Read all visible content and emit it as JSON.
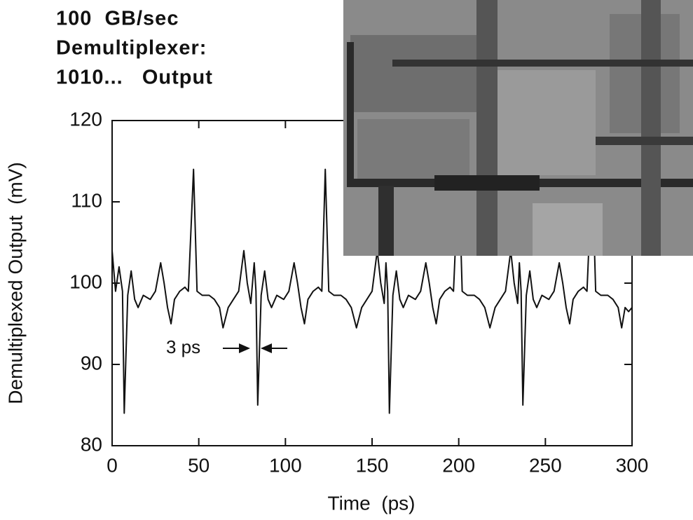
{
  "chart_data": {
    "type": "line",
    "title": [
      "100  GB/sec",
      "Demultiplexer:",
      "1010...   Output"
    ],
    "xlabel": "Time  (ps)",
    "ylabel": "Demultiplexed Output  (mV)",
    "annotation": "3 ps",
    "xlim": [
      0,
      300
    ],
    "xticks": [
      0,
      50,
      100,
      150,
      200,
      250,
      300
    ],
    "ylim": [
      80,
      120
    ],
    "yticks": [
      80,
      90,
      100,
      110,
      120
    ],
    "series": [
      {
        "color": "#111111",
        "x": [
          0,
          2,
          4,
          6,
          7,
          9,
          11,
          13,
          15,
          18,
          22,
          25,
          28,
          30,
          32,
          34,
          36,
          39,
          42,
          44,
          47,
          49,
          52,
          56,
          59,
          62,
          64,
          67,
          70,
          73,
          76,
          78,
          80,
          82,
          83,
          84,
          86,
          88,
          90,
          92,
          95,
          99,
          102,
          105,
          107,
          109,
          111,
          113,
          116,
          119,
          121,
          123,
          125,
          128,
          132,
          135,
          138,
          141,
          144,
          147,
          150,
          153,
          155,
          157,
          158,
          159,
          160,
          162,
          164,
          166,
          168,
          171,
          175,
          178,
          181,
          183,
          185,
          187,
          189,
          192,
          195,
          197,
          200,
          202,
          205,
          209,
          212,
          215,
          218,
          221,
          224,
          227,
          230,
          232,
          234,
          235,
          236,
          237,
          239,
          241,
          243,
          245,
          248,
          252,
          255,
          258,
          260,
          262,
          264,
          266,
          269,
          272,
          274,
          277,
          279,
          282,
          286,
          289,
          292,
          294,
          296,
          298,
          300
        ],
        "values": [
          104,
          99,
          102,
          99,
          84,
          98.5,
          101.5,
          98,
          97,
          98.5,
          98,
          99,
          102.5,
          100,
          97,
          95,
          98,
          99,
          99.5,
          99,
          114,
          99,
          98.5,
          98.5,
          98,
          97,
          94.5,
          97,
          98,
          99,
          104,
          100,
          97.5,
          102.5,
          99,
          85,
          98.5,
          101.5,
          98,
          97,
          98.5,
          98,
          99,
          102.5,
          100,
          97,
          95,
          98,
          99,
          99.5,
          99,
          114,
          99,
          98.5,
          98.5,
          98,
          97,
          94.5,
          97,
          98,
          99,
          104,
          100,
          97.5,
          102.5,
          99,
          84,
          98.5,
          101.5,
          98,
          97,
          98.5,
          98,
          99,
          102.5,
          100,
          97,
          95,
          98,
          99,
          99.5,
          99,
          114,
          99,
          98.5,
          98.5,
          98,
          97,
          94.5,
          97,
          98,
          99,
          104,
          100,
          97.5,
          102.5,
          99,
          85,
          98.5,
          101.5,
          98,
          97,
          98.5,
          98,
          99,
          102.5,
          100,
          97,
          95,
          98,
          99,
          99.5,
          99,
          114,
          99,
          98.5,
          98.5,
          98,
          97,
          94.5,
          97,
          96.5,
          97
        ]
      }
    ]
  }
}
